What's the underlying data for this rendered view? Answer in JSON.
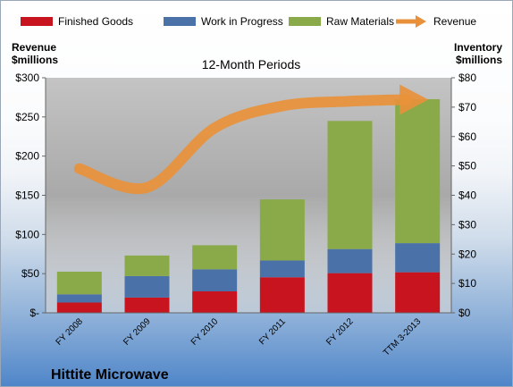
{
  "company": "Hittite Microwave",
  "chart_data": {
    "type": "bar",
    "subtitle": "12-Month Periods",
    "categories": [
      "FY 2008",
      "FY 2009",
      "FY 2010",
      "FY 2011",
      "FY 2012",
      "TTM 3-2013"
    ],
    "series": [
      {
        "name": "Finished Goods",
        "axis": "right",
        "values": [
          3.5,
          5.2,
          7.3,
          12.1,
          13.5,
          13.8
        ],
        "color": "#c8141e"
      },
      {
        "name": "Work in Progress",
        "axis": "right",
        "values": [
          2.8,
          7.3,
          7.5,
          5.7,
          8.2,
          9.9
        ],
        "color": "#4a72a8"
      },
      {
        "name": "Raw Materials",
        "axis": "right",
        "values": [
          7.7,
          7.0,
          8.2,
          20.8,
          43.6,
          49.0
        ],
        "color": "#8aaa4a"
      },
      {
        "name": "Revenue",
        "axis": "left",
        "values": [
          184,
          160,
          236,
          264,
          270,
          272
        ],
        "color": "#e8913a",
        "style": "arrow-line"
      }
    ],
    "left_axis": {
      "label_line1": "Revenue",
      "label_line2": "$millions",
      "min": 0,
      "max": 300,
      "step": 50,
      "tick_labels": [
        "$-",
        "$50",
        "$100",
        "$150",
        "$200",
        "$250",
        "$300"
      ]
    },
    "right_axis": {
      "label_line1": "Inventory",
      "label_line2": "$millions",
      "min": 0,
      "max": 80,
      "step": 10,
      "tick_labels": [
        "$0",
        "$10",
        "$20",
        "$30",
        "$40",
        "$50",
        "$60",
        "$70",
        "$80"
      ]
    },
    "grid": false,
    "legend_position": "top"
  }
}
